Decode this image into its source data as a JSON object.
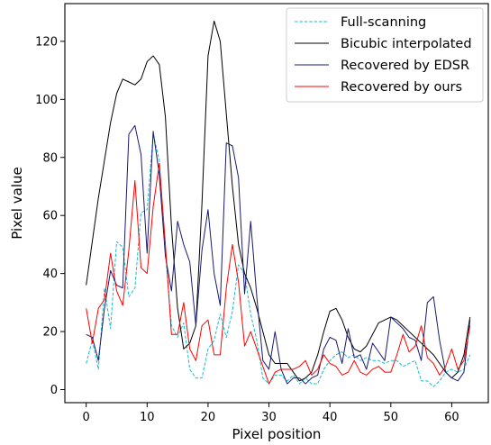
{
  "chart_data": {
    "type": "line",
    "title": "",
    "xlabel": "Pixel position",
    "ylabel": "Pixel value",
    "xlim": [
      -3.5,
      66
    ],
    "ylim": [
      -4.5,
      133
    ],
    "xticks": [
      0,
      10,
      20,
      30,
      40,
      50,
      60
    ],
    "yticks": [
      0,
      20,
      40,
      60,
      80,
      100,
      120
    ],
    "grid": false,
    "legend_position": "top-right",
    "x": [
      0,
      1,
      2,
      3,
      4,
      5,
      6,
      7,
      8,
      9,
      10,
      11,
      12,
      13,
      14,
      15,
      16,
      17,
      18,
      19,
      20,
      21,
      22,
      23,
      24,
      25,
      26,
      27,
      28,
      29,
      30,
      31,
      32,
      33,
      34,
      35,
      36,
      37,
      38,
      39,
      40,
      41,
      42,
      43,
      44,
      45,
      46,
      47,
      48,
      49,
      50,
      51,
      52,
      53,
      54,
      55,
      56,
      57,
      58,
      59,
      60,
      61,
      62,
      63
    ],
    "series": [
      {
        "name": "Full-scanning",
        "color": "#17becf",
        "dash": "dashed",
        "values": [
          9,
          17,
          7,
          35,
          21,
          51,
          49,
          32,
          35,
          61,
          62,
          88,
          79,
          47,
          22,
          18,
          23,
          7,
          4,
          4,
          14,
          17,
          26,
          18,
          27,
          43,
          40,
          26,
          17,
          4,
          2,
          5,
          5,
          3,
          5,
          2,
          4,
          2,
          2,
          7,
          10,
          12,
          13,
          11,
          12,
          10,
          11,
          10,
          10,
          9,
          10,
          10,
          8,
          9,
          10,
          3,
          3,
          1,
          3,
          6,
          7,
          6,
          7,
          12
        ]
      },
      {
        "name": "Bicubic interpolated",
        "color": "#000000",
        "dash": "solid",
        "values": [
          36,
          51,
          66,
          79,
          92,
          102,
          107,
          106,
          105,
          107,
          113,
          115,
          112,
          94,
          56,
          28,
          14,
          16,
          22,
          64,
          115,
          127,
          120,
          95,
          70,
          50,
          40,
          35,
          28,
          20,
          12,
          9,
          9,
          9,
          6,
          3,
          4,
          6,
          12,
          20,
          27,
          28,
          24,
          18,
          14,
          13,
          15,
          19,
          23,
          24,
          25,
          24,
          22,
          20,
          18,
          16,
          14,
          12,
          9,
          6,
          4,
          6,
          12,
          25
        ]
      },
      {
        "name": "Recovered by EDSR",
        "color": "#191970",
        "dash": "solid",
        "values": [
          19,
          18,
          10,
          28,
          41,
          36,
          35,
          88,
          91,
          81,
          47,
          89,
          74,
          46,
          34,
          58,
          50,
          44,
          22,
          48,
          62,
          40,
          29,
          85,
          84,
          73,
          33,
          58,
          32,
          10,
          7,
          20,
          7,
          2,
          4,
          4,
          2,
          4,
          5,
          14,
          18,
          17,
          9,
          21,
          11,
          12,
          7,
          16,
          13,
          10,
          25,
          23,
          21,
          18,
          17,
          10,
          30,
          32,
          17,
          6,
          4,
          3,
          6,
          24
        ]
      },
      {
        "name": "Recovered by ours",
        "color": "#ff0000",
        "dash": "solid",
        "values": [
          28,
          16,
          28,
          31,
          47,
          34,
          29,
          48,
          72,
          42,
          40,
          63,
          78,
          50,
          19,
          19,
          30,
          14,
          10,
          22,
          24,
          12,
          12,
          35,
          50,
          37,
          15,
          20,
          14,
          8,
          2,
          6,
          7,
          7,
          7,
          8,
          10,
          5,
          7,
          12,
          9,
          8,
          5,
          6,
          10,
          6,
          5,
          7,
          8,
          6,
          6,
          12,
          19,
          13,
          15,
          22,
          11,
          9,
          5,
          8,
          14,
          7,
          10,
          22
        ]
      }
    ]
  }
}
